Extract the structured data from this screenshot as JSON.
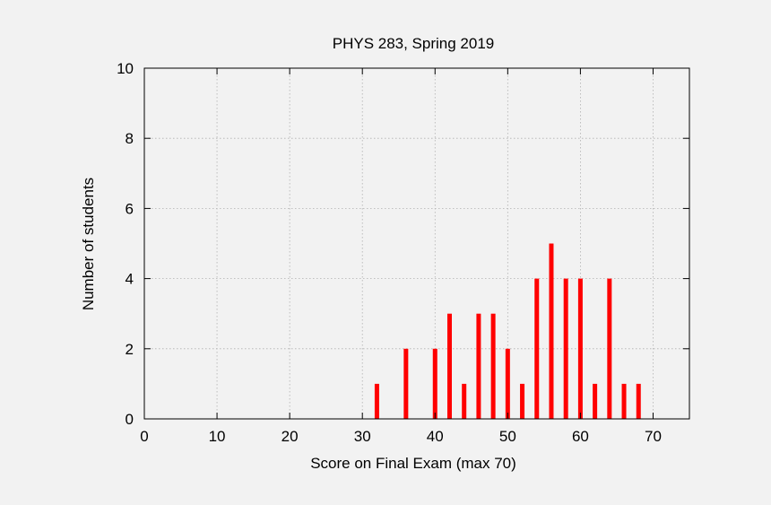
{
  "chart_data": {
    "type": "bar",
    "title": "PHYS 283, Spring 2019",
    "xlabel": "Score on Final Exam (max 70)",
    "ylabel": "Number of students",
    "xlim": [
      0,
      75
    ],
    "ylim": [
      0,
      10
    ],
    "xticks": [
      0,
      10,
      20,
      30,
      40,
      50,
      60,
      70
    ],
    "yticks": [
      0,
      2,
      4,
      6,
      8,
      10
    ],
    "grid": true,
    "legend": "none",
    "bar_color": "#ff0000",
    "x": [
      32,
      36,
      40,
      42,
      44,
      46,
      48,
      50,
      52,
      54,
      56,
      58,
      60,
      62,
      64,
      66,
      68
    ],
    "values": [
      1,
      2,
      2,
      3,
      1,
      3,
      3,
      2,
      1,
      4,
      5,
      4,
      4,
      1,
      4,
      1,
      1
    ]
  }
}
